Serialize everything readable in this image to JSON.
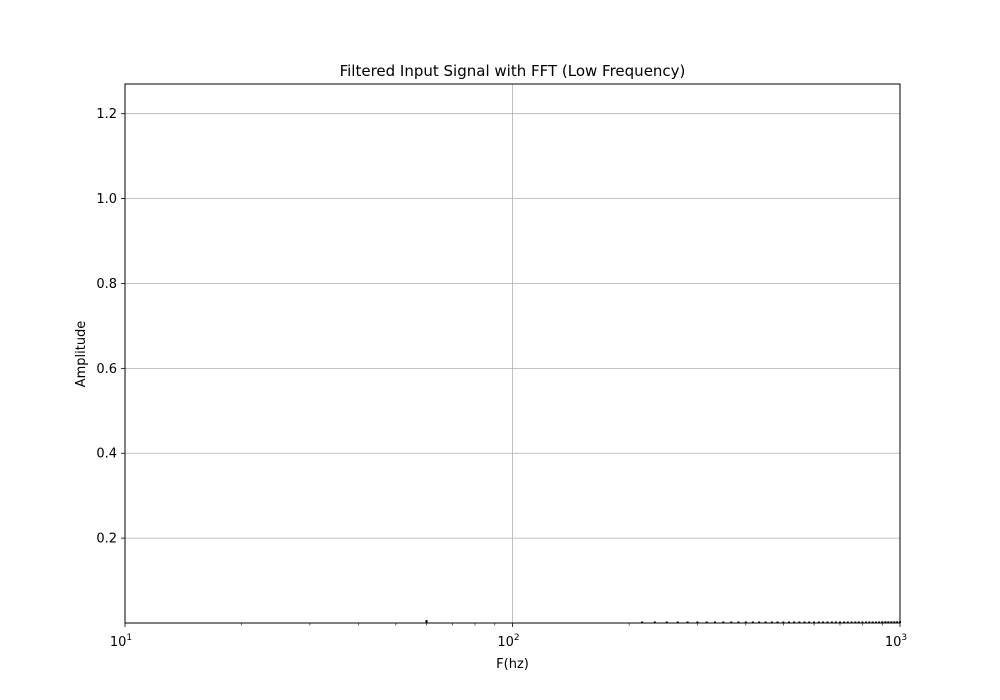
{
  "chart_data": {
    "type": "bar",
    "title": "Filtered Input Signal with FFT (Low Frequency)",
    "xlabel": "F(hz)",
    "ylabel": "Amplitude",
    "xscale": "log",
    "xlim": [
      10,
      1000
    ],
    "ylim": [
      0.0,
      1.27
    ],
    "grid": true,
    "color": "#000000",
    "x_ticks": [
      {
        "value": 10,
        "base": "10",
        "exp": "1"
      },
      {
        "value": 100,
        "base": "10",
        "exp": "2"
      },
      {
        "value": 1000,
        "base": "10",
        "exp": "3"
      }
    ],
    "y_ticks": [
      {
        "value": 0.2,
        "label": "0.2"
      },
      {
        "value": 0.4,
        "label": "0.4"
      },
      {
        "value": 0.6,
        "label": "0.6"
      },
      {
        "value": 0.8,
        "label": "0.8"
      },
      {
        "value": 1.0,
        "label": "1.0"
      },
      {
        "value": 1.2,
        "label": "1.2"
      }
    ],
    "x": [
      60,
      216,
      233,
      250,
      267,
      283,
      300,
      317,
      333,
      350,
      367,
      383,
      400,
      417,
      433,
      450,
      467,
      483,
      500,
      517,
      533,
      550,
      567,
      583,
      600,
      617,
      633,
      650,
      667,
      683,
      700,
      717,
      733,
      750,
      767,
      783,
      800,
      817,
      833,
      850,
      867,
      883,
      900,
      917,
      933,
      950,
      967,
      983,
      1000
    ],
    "values": [
      0.007,
      0.002,
      0.002,
      0.002,
      0.002,
      0.002,
      0.002,
      0.002,
      0.002,
      0.002,
      0.002,
      0.002,
      0.002,
      0.002,
      0.002,
      0.002,
      0.002,
      0.002,
      0.002,
      0.002,
      0.002,
      0.002,
      0.002,
      0.002,
      0.002,
      0.002,
      0.003,
      0.003,
      0.003,
      0.003,
      0.003,
      0.003,
      0.003,
      0.003,
      0.003,
      0.003,
      0.003,
      0.003,
      0.003,
      0.003,
      0.003,
      0.003,
      0.004,
      0.004,
      0.004,
      0.004,
      0.004,
      0.004,
      0.004
    ]
  }
}
